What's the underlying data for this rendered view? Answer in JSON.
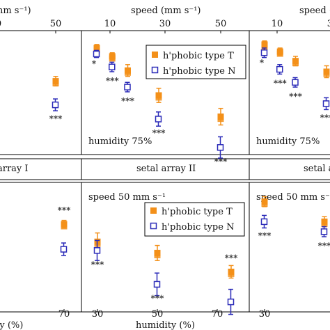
{
  "colors": {
    "type_T": "#f39019",
    "type_N": "#2b2bb8",
    "frame": "#000000",
    "strip_bg": "#ffffff"
  },
  "chart_data": [
    {
      "id": "top-left",
      "type": "scatter",
      "xlabel_partial": "mm s⁻¹)",
      "x_ticks_partial": [
        "0",
        "50"
      ],
      "annotation": "",
      "series": [
        {
          "name": "h'phobic type T",
          "x": [
            50
          ],
          "y": [
            0.62
          ],
          "err": [
            0.04
          ]
        },
        {
          "name": "h'phobic type N",
          "x": [
            50
          ],
          "y": [
            0.42
          ],
          "err": [
            0.05
          ]
        }
      ],
      "stars": [
        {
          "x": 50,
          "label": "***"
        }
      ]
    },
    {
      "id": "top-middle",
      "type": "scatter",
      "xlabel": "speed (mm s⁻¹)",
      "x_ticks": [
        "10",
        "30",
        "50"
      ],
      "annotation": "humidity 75%",
      "legend": [
        "h'phobic type T",
        "h'phobic type N"
      ],
      "series": [
        {
          "name": "h'phobic type T",
          "x": [
            10,
            15,
            20,
            30,
            50
          ],
          "y": [
            0.9,
            0.83,
            0.71,
            0.5,
            0.32
          ],
          "err": [
            0.03,
            0.03,
            0.05,
            0.06,
            0.07
          ]
        },
        {
          "name": "h'phobic type N",
          "x": [
            10,
            15,
            20,
            30,
            50
          ],
          "y": [
            0.85,
            0.74,
            0.57,
            0.3,
            0.06
          ],
          "err": [
            0.03,
            0.04,
            0.04,
            0.06,
            0.09
          ]
        }
      ],
      "stars": [
        {
          "x": 10,
          "label": "*"
        },
        {
          "x": 15,
          "label": "***"
        },
        {
          "x": 20,
          "label": "***"
        },
        {
          "x": 30,
          "label": "***"
        },
        {
          "x": 50,
          "label": "***"
        }
      ]
    },
    {
      "id": "top-right",
      "type": "scatter",
      "xlabel_partial": "speed (",
      "x_ticks_partial": [
        "10",
        "30"
      ],
      "annotation": "humidity 75%",
      "series": [
        {
          "name": "h'phobic type T",
          "x": [
            10,
            15,
            20,
            30
          ],
          "y": [
            0.93,
            0.87,
            0.79,
            0.7
          ],
          "err": [
            0.03,
            0.03,
            0.04,
            0.05
          ]
        },
        {
          "name": "h'phobic type N",
          "x": [
            10,
            15,
            20,
            30
          ],
          "y": [
            0.86,
            0.72,
            0.61,
            0.43
          ],
          "err": [
            0.04,
            0.04,
            0.04,
            0.05
          ]
        }
      ],
      "stars": [
        {
          "x": 10,
          "label": "*"
        },
        {
          "x": 15,
          "label": "***"
        },
        {
          "x": 20,
          "label": "***"
        },
        {
          "x": 30,
          "label": "***"
        }
      ]
    },
    {
      "id": "bottom-left",
      "type": "scatter",
      "xlabel_partial": "ity (%)",
      "x_ticks_partial": [
        "70"
      ],
      "strip_partial": "array I",
      "series": [
        {
          "name": "h'phobic type T",
          "x": [
            75
          ],
          "y": [
            0.7
          ],
          "err": [
            0.03
          ]
        },
        {
          "name": "h'phobic type N",
          "x": [
            75
          ],
          "y": [
            0.5
          ],
          "err": [
            0.05
          ]
        }
      ],
      "stars": [
        {
          "x": 75,
          "label": "***",
          "pos": "above"
        }
      ]
    },
    {
      "id": "bottom-middle",
      "type": "scatter",
      "xlabel": "humidity (%)",
      "x_ticks": [
        "30",
        "50",
        "70"
      ],
      "strip": "setal array II",
      "annotation": "speed 50 mm s⁻¹",
      "legend": [
        "h'phobic type T",
        "h'phobic type N"
      ],
      "series": [
        {
          "name": "h'phobic type T",
          "x": [
            30,
            50,
            75
          ],
          "y": [
            0.56,
            0.47,
            0.32
          ],
          "err": [
            0.07,
            0.06,
            0.05
          ]
        },
        {
          "name": "h'phobic type N",
          "x": [
            30,
            50,
            75
          ],
          "y": [
            0.49,
            0.22,
            0.08
          ],
          "err": [
            0.08,
            0.09,
            0.1
          ]
        }
      ],
      "stars": [
        {
          "x": 30,
          "label": "***"
        },
        {
          "x": 50,
          "label": "***"
        },
        {
          "x": 75,
          "label": "***",
          "pos": "above"
        }
      ]
    },
    {
      "id": "bottom-right",
      "type": "scatter",
      "xlabel_partial": "",
      "x_ticks_partial": [
        "30"
      ],
      "strip_partial": "setal a",
      "annotation": "speed 50 mm s⁻¹",
      "series": [
        {
          "name": "h'phobic type T",
          "x": [
            30,
            50
          ],
          "y": [
            0.88,
            0.72
          ],
          "err": [
            0.04,
            0.04
          ]
        },
        {
          "name": "h'phobic type N",
          "x": [
            30,
            50
          ],
          "y": [
            0.72,
            0.64
          ],
          "err": [
            0.05,
            0.04
          ]
        }
      ],
      "stars": [
        {
          "x": 30,
          "label": "***"
        },
        {
          "x": 50,
          "label": "***"
        }
      ]
    }
  ]
}
